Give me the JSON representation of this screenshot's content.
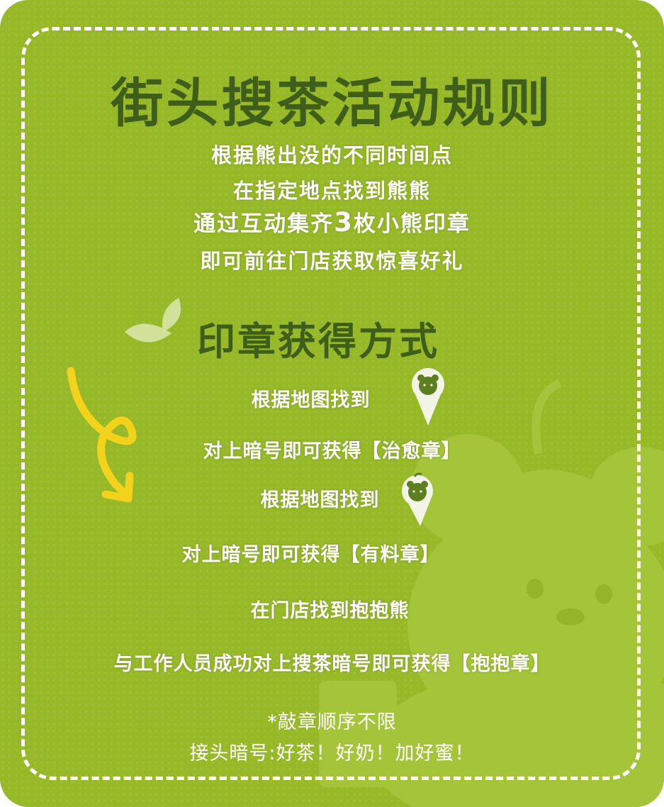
{
  "title": "街头搜茶活动规则",
  "intro": {
    "line1": "根据熊出没的不同时间点",
    "line2": "在指定地点找到熊熊",
    "line3_pre": "通过互动集齐",
    "line3_num": "3",
    "line3_post": "枚小熊印章",
    "line4": "即可前往门店获取惊喜好礼"
  },
  "section_title": "印章获得方式",
  "steps": {
    "step1": "根据地图找到",
    "step2": "对上暗号即可获得【治愈章】",
    "step3": "根据地图找到",
    "step4": "对上暗号即可获得【有料章】",
    "step5": "在门店找到抱抱熊",
    "step6": "与工作人员成功对上搜茶暗号即可获得【抱抱章】"
  },
  "notes": {
    "note1": "*敲章顺序不限",
    "note2": "接头暗号:好茶！好奶！加好蜜！"
  },
  "icons": {
    "pin1": "bear-map-pin-icon",
    "pin2": "bear-map-pin-icon",
    "leaf": "tea-leaf-icon",
    "arrow": "curly-arrow-icon"
  },
  "colors": {
    "background": "#97b928",
    "title": "#3f5e1a",
    "text": "#ffffff",
    "arrow": "#f3d21b"
  }
}
